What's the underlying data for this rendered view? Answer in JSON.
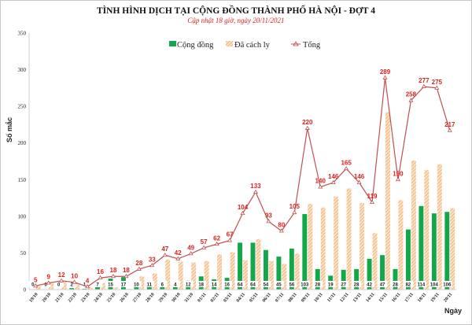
{
  "chart_data": {
    "type": "bar",
    "title": "TÌNH HÌNH DỊCH TẠI CỘNG ĐỒNG THÀNH PHỐ HÀ NỘI - ĐỢT 4",
    "subtitle": "Cập nhật 18 giờ, ngày 20/11/2021",
    "xlabel": "Ngày",
    "ylabel": "Số mắc",
    "ylim": [
      0,
      350
    ],
    "yticks": [
      0,
      50,
      100,
      150,
      200,
      250,
      300,
      350
    ],
    "grid": false,
    "legend": "top-center",
    "categories": [
      "19/10",
      "20/10",
      "21/10",
      "22/10",
      "23/10",
      "24/10",
      "25/10",
      "26/10",
      "27/10",
      "28/10",
      "29/10",
      "30/10",
      "31/10",
      "01/11",
      "02/11",
      "03/11",
      "04/11",
      "05/11",
      "06/11",
      "07/11",
      "08/11",
      "09/11",
      "10/11",
      "11/11",
      "12/11",
      "13/11",
      "14/11",
      "15/11",
      "16/11",
      "17/11",
      "18/11",
      "19/11",
      "20/11"
    ],
    "series": [
      {
        "name": "Cộng đồng",
        "type": "bar",
        "color": "#12a84a",
        "values": [
          0,
          0,
          0,
          2,
          1,
          7,
          15,
          17,
          10,
          11,
          6,
          4,
          12,
          18,
          14,
          16,
          64,
          64,
          54,
          45,
          56,
          103,
          28,
          19,
          27,
          28,
          42,
          47,
          28,
          82,
          114,
          104,
          106
        ]
      },
      {
        "name": "Đã cách ly",
        "type": "bar-hatched",
        "color": "#f0b070",
        "values": [
          5,
          9,
          12,
          8,
          3,
          9,
          3,
          1,
          18,
          22,
          41,
          38,
          37,
          39,
          48,
          51,
          40,
          69,
          39,
          35,
          49,
          117,
          112,
          127,
          138,
          118,
          77,
          242,
          122,
          176,
          163,
          171,
          111
        ]
      },
      {
        "name": "Tổng",
        "type": "line",
        "color": "#c0504d",
        "label_color": "#e02020",
        "values": [
          5,
          9,
          12,
          10,
          4,
          16,
          18,
          18,
          28,
          33,
          47,
          42,
          49,
          57,
          62,
          67,
          104,
          133,
          93,
          80,
          105,
          220,
          140,
          146,
          165,
          146,
          119,
          289,
          150,
          258,
          277,
          275,
          217
        ]
      }
    ]
  }
}
